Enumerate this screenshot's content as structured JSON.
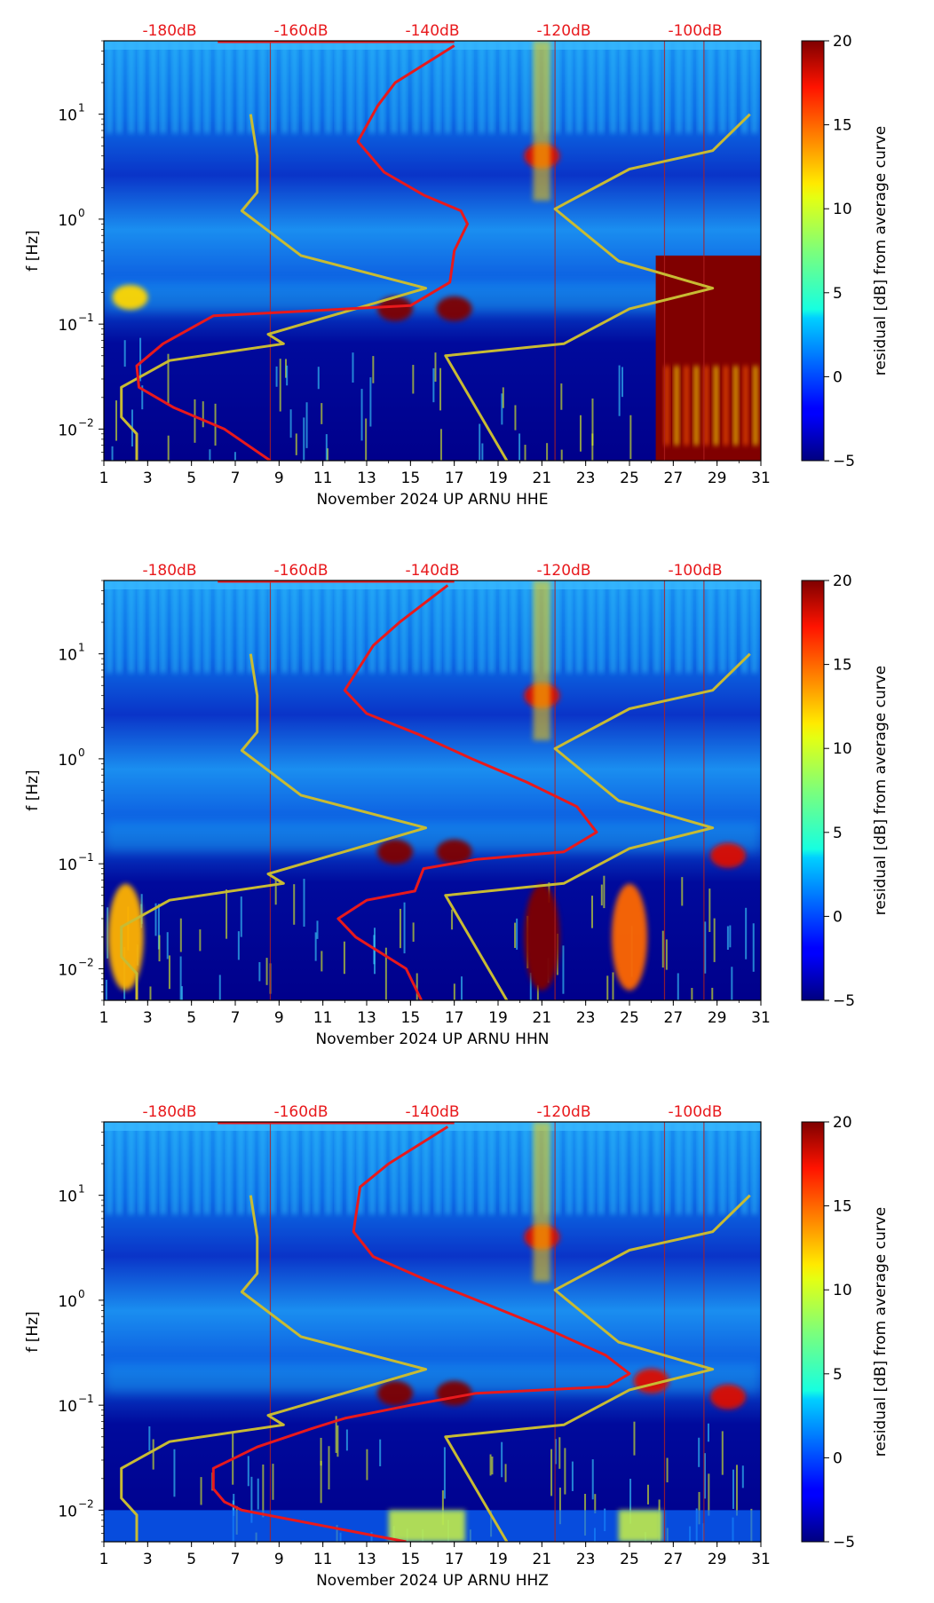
{
  "chart_data": {
    "type": "heatmap",
    "colorbar": {
      "label": "residual [dB] from average curve",
      "range": [
        -5,
        20
      ],
      "ticks": [
        "20",
        "15",
        "10",
        "5",
        "0",
        "−5"
      ],
      "tick_values": [
        20,
        15,
        10,
        5,
        0,
        -5
      ]
    },
    "x_ticks": [
      "1",
      "3",
      "5",
      "7",
      "9",
      "11",
      "13",
      "15",
      "17",
      "19",
      "21",
      "23",
      "25",
      "27",
      "29",
      "31"
    ],
    "x_tick_values": [
      1,
      3,
      5,
      7,
      9,
      11,
      13,
      15,
      17,
      19,
      21,
      23,
      25,
      27,
      29,
      31
    ],
    "xlim": [
      1,
      31
    ],
    "ylabel": "f [Hz]",
    "y_ticks": [
      {
        "base": "10",
        "exp": "1",
        "value": 10
      },
      {
        "base": "10",
        "exp": "0",
        "value": 1
      },
      {
        "base": "10",
        "exp": "−1",
        "value": 0.1
      },
      {
        "base": "10",
        "exp": "−2",
        "value": 0.01
      }
    ],
    "ylim": [
      0.005,
      50
    ],
    "top_db_labels": [
      "-180dB",
      "-160dB",
      "-140dB",
      "-120dB",
      "-100dB"
    ],
    "top_db_values": [
      -180,
      -160,
      -140,
      -120,
      -100
    ],
    "top_db_x_days": [
      4,
      10,
      16,
      22,
      28
    ],
    "daily_tick_days": [
      1,
      2,
      3,
      4,
      5,
      6,
      7,
      8,
      9,
      10,
      11,
      12,
      13,
      14,
      15,
      16,
      17,
      18,
      19,
      20,
      21,
      22,
      23,
      24,
      25,
      26,
      27,
      28,
      29,
      30,
      31
    ],
    "noise_model_curves": {
      "color_yellow": "#c8bb33",
      "color_red": "#e8191c",
      "yellow_model": {
        "day": [
          7.7,
          8.0,
          8.0,
          7.3,
          10.0,
          15.7,
          8.5,
          9.2,
          4.0,
          1.8,
          1.8,
          2.5,
          2.5
        ],
        "freq": [
          10.0,
          4.0,
          1.8,
          1.2,
          0.45,
          0.22,
          0.08,
          0.065,
          0.045,
          0.025,
          0.013,
          0.009,
          0.005
        ]
      },
      "yellow_model_right": {
        "day": [
          30.5,
          28.8,
          25.0,
          21.6,
          24.5,
          28.8,
          25.0,
          22.0,
          16.6,
          19.4
        ],
        "freq": [
          10.0,
          4.5,
          3.0,
          1.25,
          0.4,
          0.22,
          0.14,
          0.065,
          0.05,
          0.005
        ]
      },
      "red_top_day_range": [
        6.2,
        17.0
      ]
    },
    "time_markers_days": [
      8.6,
      21.6,
      26.6,
      28.4
    ],
    "panels": [
      {
        "xlabel": "November 2024 UP ARNU  HHE",
        "red_curve": {
          "day": [
            17.0,
            14.3,
            13.5,
            12.6,
            13.8,
            15.6,
            17.3,
            17.6,
            17.0,
            16.8,
            15.0,
            6.0,
            3.7,
            2.5,
            2.6,
            4.2,
            6.5,
            8.6
          ],
          "freq": [
            45,
            20,
            12,
            5.5,
            2.8,
            1.7,
            1.2,
            0.9,
            0.5,
            0.25,
            0.15,
            0.12,
            0.065,
            0.04,
            0.025,
            0.016,
            0.01,
            0.005
          ]
        },
        "features": [
          {
            "day": 14.3,
            "freq": 0.14,
            "level": 20
          },
          {
            "day": 17.0,
            "freq": 0.14,
            "level": 20
          },
          {
            "day": 21.0,
            "freq": 4.0,
            "level": 18
          },
          {
            "day": 2.2,
            "freq": 0.18,
            "level": 12
          }
        ],
        "saturated_block_days": [
          26.2,
          31
        ],
        "saturated_block_freq": [
          0.005,
          0.45
        ]
      },
      {
        "xlabel": "November 2024 UP ARNU  HHN",
        "red_curve": {
          "day": [
            16.7,
            14.5,
            13.3,
            12.0,
            13.0,
            15.4,
            17.8,
            20.3,
            22.6,
            23.5,
            22.0,
            18.0,
            15.6,
            15.2,
            13.0,
            11.7,
            12.5,
            14.8,
            15.5
          ],
          "freq": [
            45,
            20,
            12,
            4.5,
            2.7,
            1.7,
            1.0,
            0.6,
            0.35,
            0.2,
            0.13,
            0.11,
            0.09,
            0.055,
            0.045,
            0.03,
            0.02,
            0.01,
            0.005
          ]
        },
        "features": [
          {
            "day": 14.3,
            "freq": 0.13,
            "level": 20
          },
          {
            "day": 17.0,
            "freq": 0.13,
            "level": 20
          },
          {
            "day": 21.0,
            "freq": 4.0,
            "level": 18
          },
          {
            "day": 21.0,
            "freq": 0.02,
            "level": 20
          },
          {
            "day": 25.0,
            "freq": 0.02,
            "level": 15
          },
          {
            "day": 29.5,
            "freq": 0.12,
            "level": 18
          },
          {
            "day": 2.0,
            "freq": 0.02,
            "level": 13
          }
        ]
      },
      {
        "xlabel": "November 2024 UP ARNU  HHZ",
        "red_curve": {
          "day": [
            16.7,
            14.0,
            12.7,
            12.4,
            13.3,
            15.6,
            18.3,
            21.1,
            23.9,
            25.0,
            24.0,
            18.0,
            15.0,
            12.0,
            10.5,
            8.0,
            6.0,
            6.0,
            6.5,
            7.3,
            14.8
          ],
          "freq": [
            45,
            20,
            12,
            4.5,
            2.6,
            1.6,
            0.95,
            0.55,
            0.3,
            0.2,
            0.15,
            0.13,
            0.1,
            0.075,
            0.06,
            0.04,
            0.025,
            0.016,
            0.012,
            0.01,
            0.005
          ]
        },
        "features": [
          {
            "day": 14.3,
            "freq": 0.13,
            "level": 20
          },
          {
            "day": 17.0,
            "freq": 0.13,
            "level": 20
          },
          {
            "day": 21.0,
            "freq": 4.0,
            "level": 18
          },
          {
            "day": 29.5,
            "freq": 0.12,
            "level": 18
          },
          {
            "day": 26.0,
            "freq": 0.17,
            "level": 18
          }
        ],
        "bottom_band_freq": [
          0.005,
          0.01
        ]
      }
    ]
  }
}
